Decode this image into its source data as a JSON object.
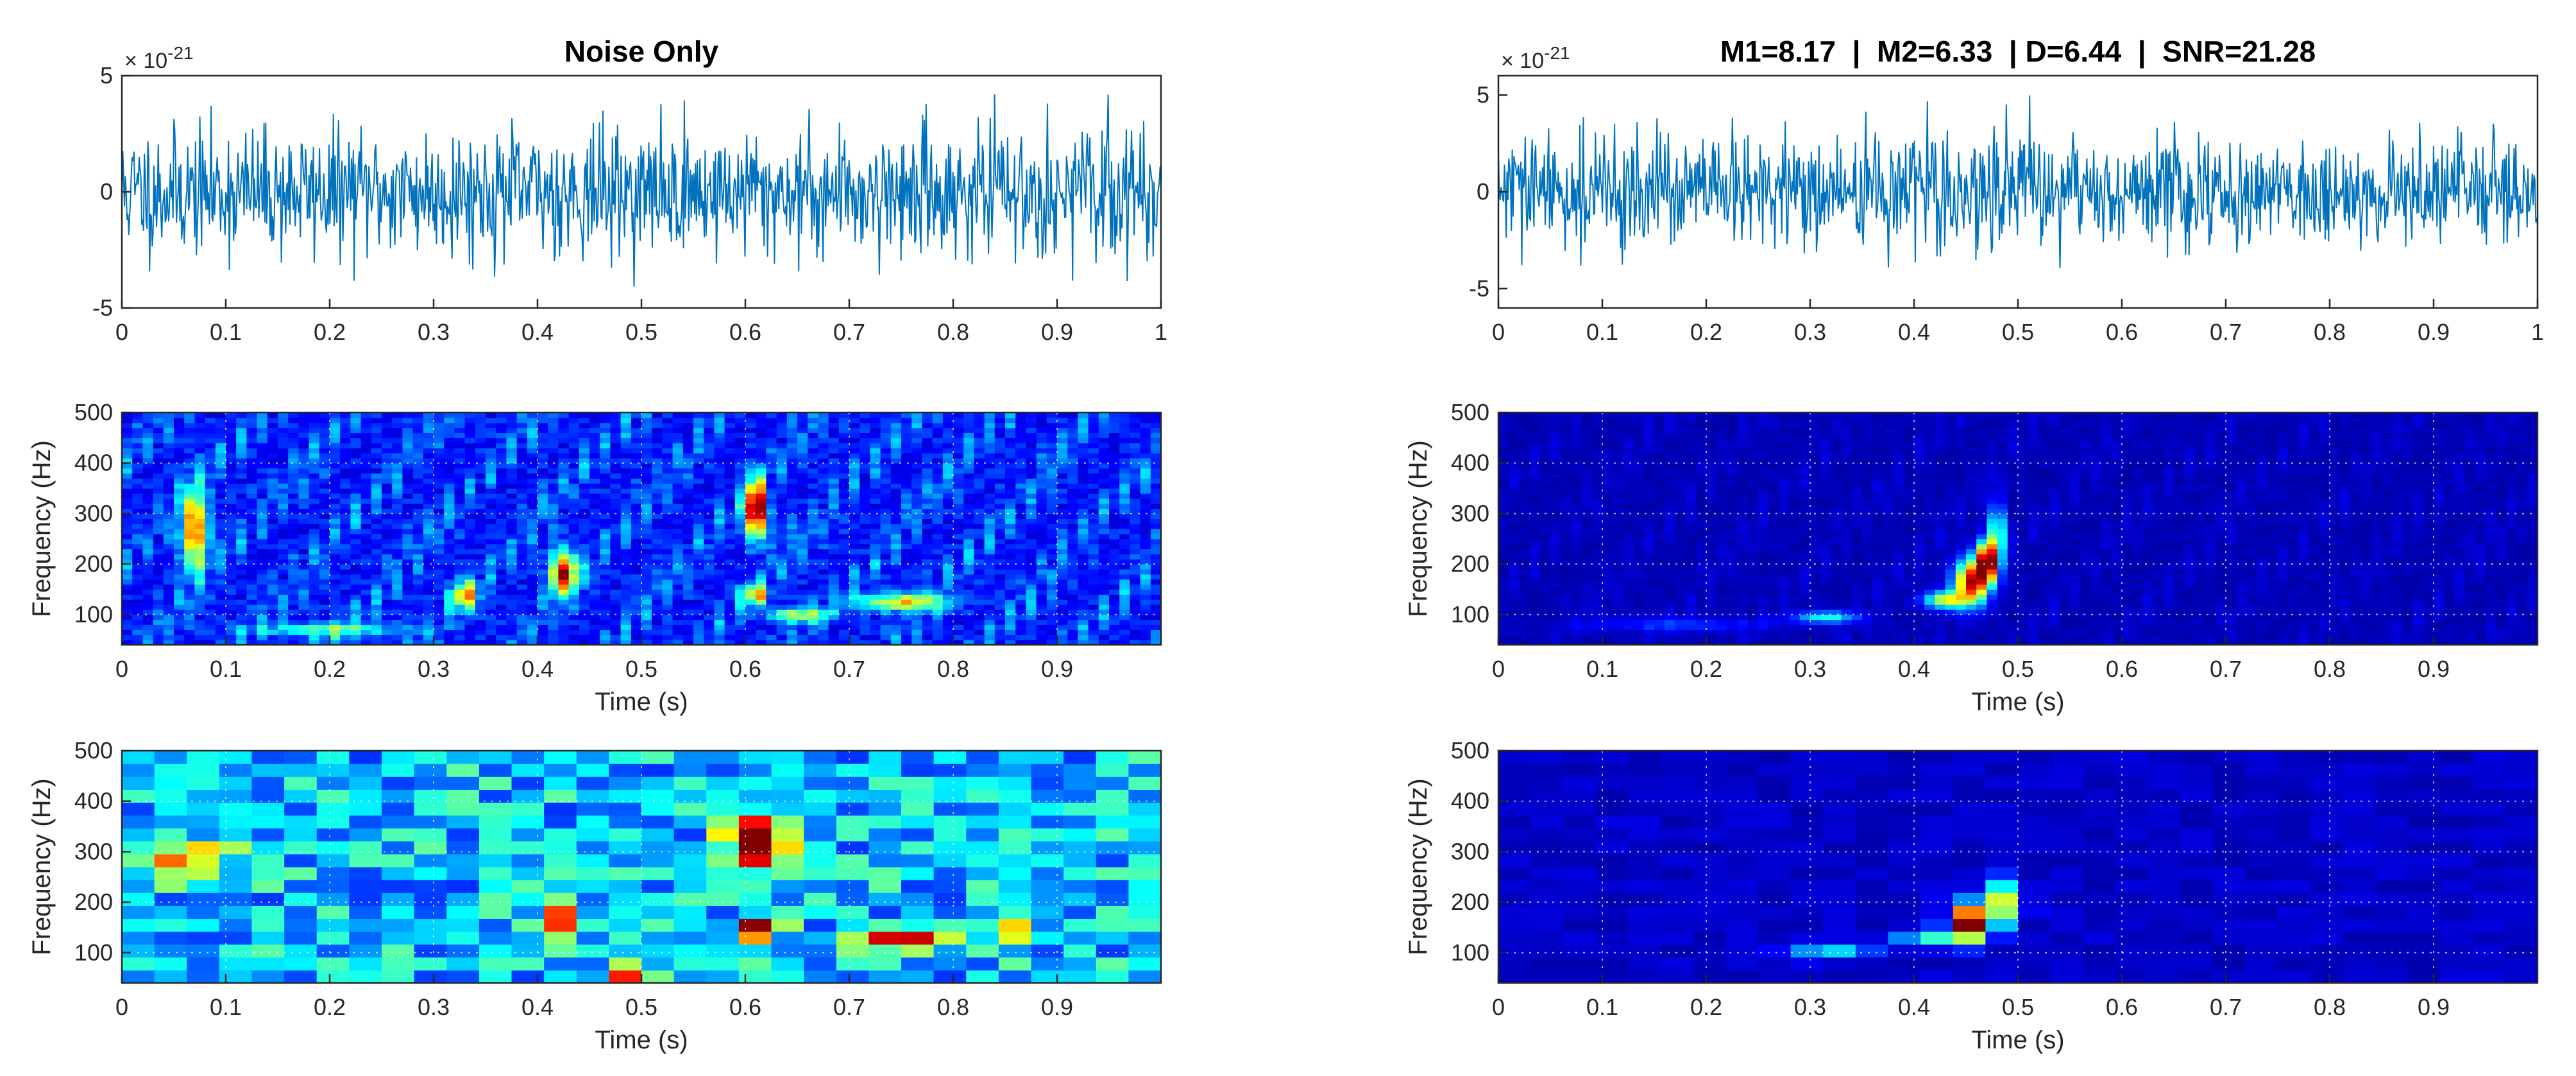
{
  "chart_data": [
    {
      "id": "noise-waveform",
      "type": "line",
      "title": "Noise Only",
      "xlabel": "",
      "ylabel": "",
      "exponent_label": "× 10",
      "exponent_power": "-21",
      "xlim": [
        0,
        1
      ],
      "ylim": [
        -5,
        5
      ],
      "xticks": [
        "0",
        "0.1",
        "0.2",
        "0.3",
        "0.4",
        "0.5",
        "0.6",
        "0.7",
        "0.8",
        "0.9",
        "1"
      ],
      "yticks": [
        {
          "v": 5,
          "t": "5"
        },
        {
          "v": 0,
          "t": "0"
        },
        {
          "v": -5,
          "t": "-5"
        }
      ],
      "grid": false,
      "series": [
        {
          "color": "#0072BD",
          "samples": 1200,
          "amplitude": 1.35,
          "seed": 11,
          "chirp": null
        }
      ]
    },
    {
      "id": "signal-waveform",
      "type": "line",
      "title": "M1=8.17  |  M2=6.33  | D=6.44  |  SNR=21.28",
      "xlabel": "",
      "ylabel": "",
      "exponent_label": "× 10",
      "exponent_power": "-21",
      "xlim": [
        0,
        1
      ],
      "ylim": [
        -6,
        6
      ],
      "xticks": [
        "0",
        "0.1",
        "0.2",
        "0.3",
        "0.4",
        "0.5",
        "0.6",
        "0.7",
        "0.8",
        "0.9",
        "1"
      ],
      "yticks": [
        {
          "v": 5,
          "t": "5"
        },
        {
          "v": 0,
          "t": "0"
        },
        {
          "v": -5,
          "t": "-5"
        }
      ],
      "grid": false,
      "series": [
        {
          "color": "#0072BD",
          "samples": 1200,
          "amplitude": 1.45,
          "seed": 29,
          "chirp": {
            "t0": 0.45,
            "t1": 0.49,
            "amp": 2.2
          }
        }
      ]
    },
    {
      "id": "noise-scalogram",
      "type": "heatmap",
      "title": "",
      "xlabel": "Time (s)",
      "ylabel": "Frequency (Hz)",
      "xlim": [
        0,
        1
      ],
      "ylim": [
        40,
        500
      ],
      "xticks": [
        "0",
        "0.1",
        "0.2",
        "0.3",
        "0.4",
        "0.5",
        "0.6",
        "0.7",
        "0.8",
        "0.9"
      ],
      "yticks": [
        {
          "v": 500,
          "t": "500"
        },
        {
          "v": 400,
          "t": "400"
        },
        {
          "v": 300,
          "t": "300"
        },
        {
          "v": 200,
          "t": "200"
        },
        {
          "v": 100,
          "t": "100"
        }
      ],
      "grid": true,
      "colormap": "jet",
      "cols": 100,
      "rows": 46,
      "blobs": [
        {
          "t": 0.07,
          "f": 270,
          "st": 0.009,
          "sf": 55,
          "a": 0.65
        },
        {
          "t": 0.425,
          "f": 185,
          "st": 0.009,
          "sf": 30,
          "a": 0.75
        },
        {
          "t": 0.61,
          "f": 310,
          "st": 0.007,
          "sf": 38,
          "a": 1.0
        },
        {
          "t": 0.61,
          "f": 140,
          "st": 0.008,
          "sf": 15,
          "a": 0.55
        },
        {
          "t": 0.75,
          "f": 125,
          "st": 0.03,
          "sf": 12,
          "a": 0.5
        },
        {
          "t": 0.33,
          "f": 140,
          "st": 0.009,
          "sf": 20,
          "a": 0.5
        },
        {
          "t": 0.65,
          "f": 100,
          "st": 0.02,
          "sf": 10,
          "a": 0.4
        },
        {
          "t": 0.2,
          "f": 70,
          "st": 0.05,
          "sf": 10,
          "a": 0.3
        }
      ],
      "background": 0.12,
      "seed": 5
    },
    {
      "id": "signal-scalogram",
      "type": "heatmap",
      "title": "",
      "xlabel": "Time (s)",
      "ylabel": "Frequency (Hz)",
      "xlim": [
        0,
        1
      ],
      "ylim": [
        40,
        500
      ],
      "xticks": [
        "0",
        "0.1",
        "0.2",
        "0.3",
        "0.4",
        "0.5",
        "0.6",
        "0.7",
        "0.8",
        "0.9"
      ],
      "yticks": [
        {
          "v": 500,
          "t": "500"
        },
        {
          "v": 400,
          "t": "400"
        },
        {
          "v": 300,
          "t": "300"
        },
        {
          "v": 200,
          "t": "200"
        },
        {
          "v": 100,
          "t": "100"
        }
      ],
      "grid": true,
      "colormap": "jet",
      "cols": 100,
      "rows": 46,
      "blobs": [
        {
          "t": 0.455,
          "f": 165,
          "st": 0.011,
          "sf": 30,
          "a": 0.85
        },
        {
          "t": 0.47,
          "f": 205,
          "st": 0.007,
          "sf": 28,
          "a": 0.95
        },
        {
          "t": 0.48,
          "f": 260,
          "st": 0.005,
          "sf": 40,
          "a": 0.5
        },
        {
          "t": 0.43,
          "f": 130,
          "st": 0.014,
          "sf": 12,
          "a": 0.55
        },
        {
          "t": 0.315,
          "f": 95,
          "st": 0.02,
          "sf": 8,
          "a": 0.35
        },
        {
          "t": 0.17,
          "f": 80,
          "st": 0.06,
          "sf": 10,
          "a": 0.12
        }
      ],
      "background": 0.03,
      "seed": 9
    },
    {
      "id": "noise-spectrogram",
      "type": "heatmap",
      "title": "",
      "xlabel": "Time (s)",
      "ylabel": "Frequency (Hz)",
      "xlim": [
        0,
        1
      ],
      "ylim": [
        40,
        500
      ],
      "xticks": [
        "0",
        "0.1",
        "0.2",
        "0.3",
        "0.4",
        "0.5",
        "0.6",
        "0.7",
        "0.8",
        "0.9"
      ],
      "yticks": [
        {
          "v": 500,
          "t": "500"
        },
        {
          "v": 400,
          "t": "400"
        },
        {
          "v": 300,
          "t": "300"
        },
        {
          "v": 200,
          "t": "200"
        },
        {
          "v": 100,
          "t": "100"
        }
      ],
      "grid": true,
      "colormap": "jet",
      "cols": 32,
      "rows": 18,
      "blobs": [
        {
          "t": 0.61,
          "f": 320,
          "st": 0.02,
          "sf": 35,
          "a": 0.95
        },
        {
          "t": 0.61,
          "f": 145,
          "st": 0.015,
          "sf": 12,
          "a": 0.75
        },
        {
          "t": 0.755,
          "f": 125,
          "st": 0.03,
          "sf": 14,
          "a": 0.65
        },
        {
          "t": 0.425,
          "f": 175,
          "st": 0.015,
          "sf": 25,
          "a": 0.6
        },
        {
          "t": 0.06,
          "f": 280,
          "st": 0.03,
          "sf": 30,
          "a": 0.45
        },
        {
          "t": 0.86,
          "f": 145,
          "st": 0.015,
          "sf": 20,
          "a": 0.55
        },
        {
          "t": 0.48,
          "f": 60,
          "st": 0.015,
          "sf": 10,
          "a": 0.55
        }
      ],
      "background": 0.3,
      "seed": 17
    },
    {
      "id": "signal-spectrogram",
      "type": "heatmap",
      "title": "",
      "xlabel": "Time (s)",
      "ylabel": "Frequency (Hz)",
      "xlim": [
        0,
        1
      ],
      "ylim": [
        40,
        500
      ],
      "xticks": [
        "0",
        "0.1",
        "0.2",
        "0.3",
        "0.4",
        "0.5",
        "0.6",
        "0.7",
        "0.8",
        "0.9"
      ],
      "yticks": [
        {
          "v": 500,
          "t": "500"
        },
        {
          "v": 400,
          "t": "400"
        },
        {
          "v": 300,
          "t": "300"
        },
        {
          "v": 200,
          "t": "200"
        },
        {
          "v": 100,
          "t": "100"
        }
      ],
      "grid": true,
      "colormap": "jet",
      "cols": 32,
      "rows": 18,
      "blobs": [
        {
          "t": 0.455,
          "f": 160,
          "st": 0.015,
          "sf": 25,
          "a": 1.0
        },
        {
          "t": 0.49,
          "f": 205,
          "st": 0.01,
          "sf": 30,
          "a": 0.55
        },
        {
          "t": 0.41,
          "f": 130,
          "st": 0.015,
          "sf": 12,
          "a": 0.4
        },
        {
          "t": 0.32,
          "f": 100,
          "st": 0.03,
          "sf": 10,
          "a": 0.3
        }
      ],
      "background": 0.05,
      "seed": 23
    }
  ]
}
